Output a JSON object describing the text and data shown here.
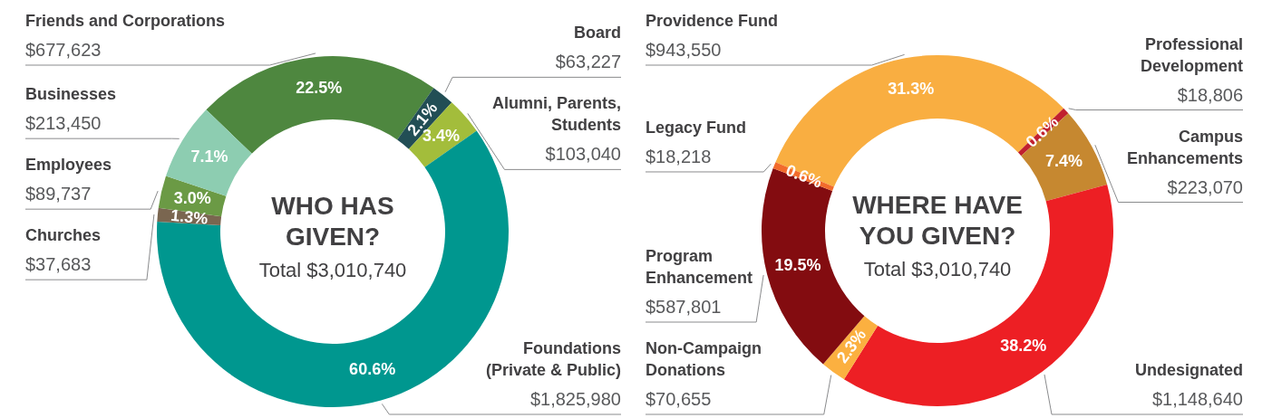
{
  "chart_data": [
    {
      "type": "donut",
      "title": "WHO HAS GIVEN?",
      "subtitle": "Total $3,010,740",
      "categories": [
        "Friends and Corporations",
        "Board",
        "Alumni, Parents, Students",
        "Foundations (Private & Public)",
        "Churches",
        "Employees",
        "Businesses"
      ],
      "values": [
        677623,
        63227,
        103040,
        1825980,
        37683,
        89737,
        213450
      ],
      "colors": [
        "#4e873f",
        "#224e55",
        "#a3bd3b",
        "#00978f",
        "#7a6650",
        "#6b9a45",
        "#8dcdb1"
      ],
      "value_labels": [
        "$677,623",
        "$63,227",
        "$103,040",
        "$1,825,980",
        "$37,683",
        "$89,737",
        "$213,450"
      ],
      "annotations": [
        {
          "text": "22.5%",
          "x": "Friends and Corporations"
        },
        {
          "text": "2.1%",
          "x": "Board"
        },
        {
          "text": "3.4%",
          "x": "Alumni, Parents, Students"
        },
        {
          "text": "60.6%",
          "x": "Foundations (Private & Public)"
        },
        {
          "text": "1.3%",
          "x": "Churches"
        },
        {
          "text": "3.0%",
          "x": "Employees"
        },
        {
          "text": "7.1%",
          "x": "Businesses"
        }
      ]
    },
    {
      "type": "donut",
      "title": "WHERE HAVE YOU GIVEN?",
      "subtitle": "Total $3,010,740",
      "categories": [
        "Providence Fund",
        "Professional Development",
        "Campus Enhancements",
        "Undesignated",
        "Non-Campaign Donations",
        "Program Enhancement",
        "Legacy Fund"
      ],
      "values": [
        943550,
        18806,
        223070,
        1148640,
        70655,
        587801,
        18218
      ],
      "colors": [
        "#f9ae41",
        "#c1202f",
        "#c68830",
        "#ed1f24",
        "#fbb040",
        "#830c10",
        "#f26b2c"
      ],
      "value_labels": [
        "$943,550",
        "$18,806",
        "$223,070",
        "$1,148,640",
        "$70,655",
        "$587,801",
        "$18,218"
      ],
      "annotations": [
        {
          "text": "31.3%",
          "x": "Providence Fund"
        },
        {
          "text": "0.6%",
          "x": "Professional Development"
        },
        {
          "text": "7.4%",
          "x": "Campus Enhancements"
        },
        {
          "text": "38.2%",
          "x": "Undesignated"
        },
        {
          "text": "2.3%",
          "x": "Non-Campaign Donations"
        },
        {
          "text": "19.5%",
          "x": "Program Enhancement"
        },
        {
          "text": "0.6%",
          "x": "Legacy Fund"
        }
      ]
    }
  ]
}
